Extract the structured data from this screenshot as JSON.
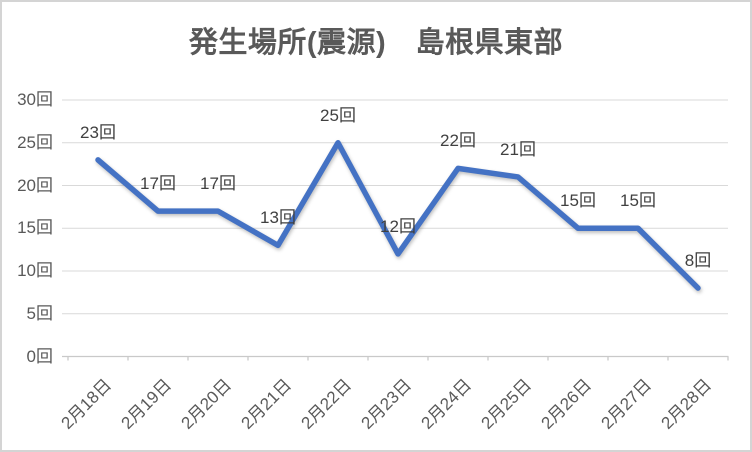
{
  "chart_data": {
    "type": "line",
    "title": "発生場所(震源)　島根県東部",
    "categories": [
      "2月18日",
      "2月19日",
      "2月20日",
      "2月21日",
      "2月22日",
      "2月23日",
      "2月24日",
      "2月25日",
      "2月26日",
      "2月27日",
      "2月28日"
    ],
    "values": [
      23,
      17,
      17,
      13,
      25,
      12,
      22,
      21,
      15,
      15,
      8
    ],
    "data_labels": [
      "23回",
      "17回",
      "17回",
      "13回",
      "25回",
      "12回",
      "22回",
      "21回",
      "15回",
      "15回",
      "8回"
    ],
    "unit": "回",
    "y_ticks": [
      {
        "value": 0,
        "label": "0回"
      },
      {
        "value": 5,
        "label": "5回"
      },
      {
        "value": 10,
        "label": "10回"
      },
      {
        "value": 15,
        "label": "15回"
      },
      {
        "value": 20,
        "label": "20回"
      },
      {
        "value": 25,
        "label": "25回"
      },
      {
        "value": 30,
        "label": "30回"
      }
    ],
    "ylim": [
      0,
      30
    ],
    "xlabel": "",
    "ylabel": "",
    "grid": true,
    "legend": "none",
    "markers": "none",
    "x_label_rotation_deg": 45,
    "colors": {
      "line": "#4472C4",
      "grid": "#d9d9d9",
      "axis": "#c9c9c9",
      "tick_label": "#595959",
      "data_label": "#404040",
      "title": "#595959",
      "frame_border": "#d4d4d4",
      "background": "#ffffff"
    }
  }
}
